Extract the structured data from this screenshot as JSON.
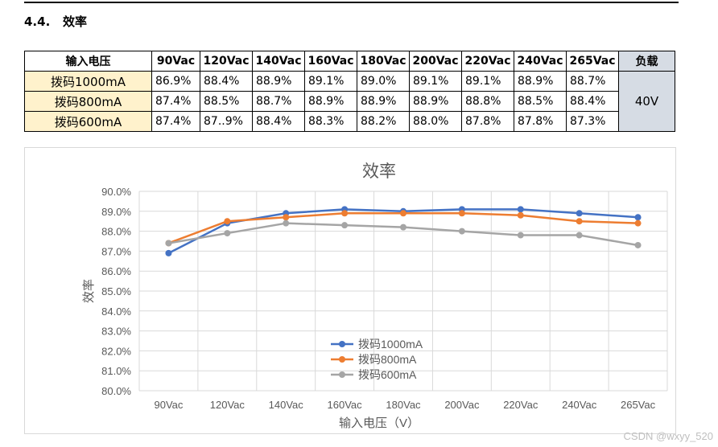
{
  "section": {
    "number": "4.4.",
    "title": "效率"
  },
  "table": {
    "header_label": "输入电压",
    "columns": [
      "90Vac",
      "120Vac",
      "140Vac",
      "160Vac",
      "180Vac",
      "200Vac",
      "220Vac",
      "240Vac",
      "265Vac"
    ],
    "load_header": "负载",
    "load_value": "40V",
    "rows": [
      {
        "label": "拨码1000mA",
        "cells": [
          "86.9%",
          "88.4%",
          "88.9%",
          "89.1%",
          "89.0%",
          "89.1%",
          "89.1%",
          "88.9%",
          "88.7%"
        ]
      },
      {
        "label": "拨码800mA",
        "cells": [
          "87.4%",
          "88.5%",
          "88.7%",
          "88.9%",
          "88.9%",
          "88.9%",
          "88.8%",
          "88.5%",
          "88.4%"
        ]
      },
      {
        "label": "拨码600mA",
        "cells": [
          "87.4%",
          "87..9%",
          "88.4%",
          "88.3%",
          "88.2%",
          "88.0%",
          "87.8%",
          "87.8%",
          "87.3%"
        ]
      }
    ]
  },
  "chart_data": {
    "type": "line",
    "title": "效率",
    "xlabel": "输入电压（V）",
    "ylabel": "效率",
    "categories": [
      "90Vac",
      "120Vac",
      "140Vac",
      "160Vac",
      "180Vac",
      "200Vac",
      "220Vac",
      "240Vac",
      "265Vac"
    ],
    "ylim": [
      80.0,
      90.0
    ],
    "ystep": 1.0,
    "yticks": [
      "80.0%",
      "81.0%",
      "82.0%",
      "83.0%",
      "84.0%",
      "85.0%",
      "86.0%",
      "87.0%",
      "88.0%",
      "89.0%",
      "90.0%"
    ],
    "grid": true,
    "legend_position": "inside-bottom-center",
    "series": [
      {
        "name": "拨码1000mA",
        "color": "#4472c4",
        "values": [
          86.9,
          88.4,
          88.9,
          89.1,
          89.0,
          89.1,
          89.1,
          88.9,
          88.7
        ]
      },
      {
        "name": "拨码800mA",
        "color": "#ed7d31",
        "values": [
          87.4,
          88.5,
          88.7,
          88.9,
          88.9,
          88.9,
          88.8,
          88.5,
          88.4
        ]
      },
      {
        "name": "拨码600mA",
        "color": "#a5a5a5",
        "values": [
          87.4,
          87.9,
          88.4,
          88.3,
          88.2,
          88.0,
          87.8,
          87.8,
          87.3
        ]
      }
    ]
  },
  "watermark": "CSDN @wxyy_520"
}
